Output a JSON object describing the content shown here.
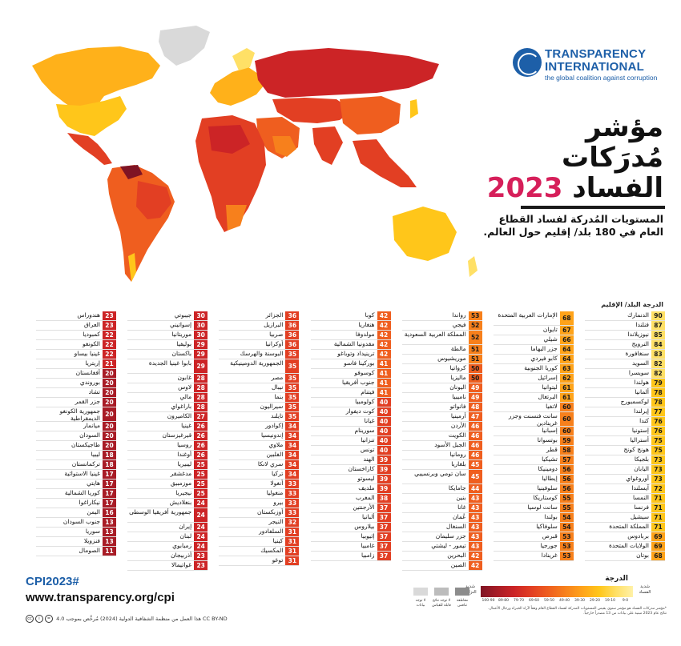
{
  "brand": {
    "name_line1": "TRANSPARENCY",
    "name_line2": "INTERNATIONAL",
    "tagline": "the global coalition against corruption",
    "color": "#1d5fa8"
  },
  "title": {
    "line1": "مؤشر",
    "line2": "مُدرَكات",
    "line3_word": "الفساد",
    "year": "2023",
    "year_color": "#d61f5a"
  },
  "subtitle": "المستويات المُدركة لفساد القطاع العام في 180 بلد/ إقليم حول العالم.",
  "table": {
    "header_country": "البلد/ الإقليم",
    "header_score": "الدرجة",
    "columns": [
      [
        {
          "name": "الدنمارك",
          "score": 90
        },
        {
          "name": "فنلندا",
          "score": 87
        },
        {
          "name": "نيوزيلاندا",
          "score": 85
        },
        {
          "name": "النرويج",
          "score": 84
        },
        {
          "name": "سنغافورة",
          "score": 83
        },
        {
          "name": "السويد",
          "score": 82
        },
        {
          "name": "سويسرا",
          "score": 82
        },
        {
          "name": "هولندا",
          "score": 79
        },
        {
          "name": "ألمانيا",
          "score": 78
        },
        {
          "name": "لوكسمبورج",
          "score": 78
        },
        {
          "name": "إيرلندا",
          "score": 77
        },
        {
          "name": "كندا",
          "score": 76
        },
        {
          "name": "إستونيا",
          "score": 76
        },
        {
          "name": "أستراليا",
          "score": 75
        },
        {
          "name": "هونج كونج",
          "score": 75
        },
        {
          "name": "بلجيكا",
          "score": 73
        },
        {
          "name": "اليابان",
          "score": 73
        },
        {
          "name": "أوروغواي",
          "score": 73
        },
        {
          "name": "آيسلندا",
          "score": 72
        },
        {
          "name": "النمسا",
          "score": 71
        },
        {
          "name": "فرنسا",
          "score": 71
        },
        {
          "name": "سيشيل",
          "score": 71
        },
        {
          "name": "المملكة المتحدة",
          "score": 71
        },
        {
          "name": "بربادوس",
          "score": 69
        },
        {
          "name": "الولايات المتحدة",
          "score": 69
        },
        {
          "name": "بوتان",
          "score": 68
        }
      ],
      [
        {
          "name": "الإمارات العربية المتحدة",
          "score": 68
        },
        {
          "name": "تايوان",
          "score": 67
        },
        {
          "name": "شيلي",
          "score": 66
        },
        {
          "name": "جزر البهاما",
          "score": 64
        },
        {
          "name": "كابو فيردي",
          "score": 64
        },
        {
          "name": "كوريا الجنوبية",
          "score": 63
        },
        {
          "name": "إسرائيل",
          "score": 62
        },
        {
          "name": "ليتوانيا",
          "score": 61
        },
        {
          "name": "البرتغال",
          "score": 61
        },
        {
          "name": "لاتفيا",
          "score": 60
        },
        {
          "name": "سانت فنسنت وجزر غرينادين",
          "score": 60
        },
        {
          "name": "إسبانيا",
          "score": 60
        },
        {
          "name": "بوتسوانا",
          "score": 59
        },
        {
          "name": "قطر",
          "score": 58
        },
        {
          "name": "تشيكيا",
          "score": 57
        },
        {
          "name": "دومينيكا",
          "score": 56
        },
        {
          "name": "إيطاليا",
          "score": 56
        },
        {
          "name": "سلوفينيا",
          "score": 56
        },
        {
          "name": "كوستاريكا",
          "score": 55
        },
        {
          "name": "سانت لوسيا",
          "score": 55
        },
        {
          "name": "بولندا",
          "score": 54
        },
        {
          "name": "سلوفاكيا",
          "score": 54
        },
        {
          "name": "قبرص",
          "score": 53
        },
        {
          "name": "جورجيا",
          "score": 53
        },
        {
          "name": "غرينادا",
          "score": 53
        }
      ],
      [
        {
          "name": "رواندا",
          "score": 53
        },
        {
          "name": "فيجي",
          "score": 52
        },
        {
          "name": "المملكة العربية السعودية",
          "score": 52
        },
        {
          "name": "مالطة",
          "score": 51
        },
        {
          "name": "موريشيوس",
          "score": 51
        },
        {
          "name": "كرواتيا",
          "score": 50
        },
        {
          "name": "ماليزيا",
          "score": 50
        },
        {
          "name": "اليونان",
          "score": 49
        },
        {
          "name": "ناميبيا",
          "score": 49
        },
        {
          "name": "فانواتو",
          "score": 48
        },
        {
          "name": "أرمينيا",
          "score": 47
        },
        {
          "name": "الأردن",
          "score": 46
        },
        {
          "name": "الكويت",
          "score": 46
        },
        {
          "name": "الجبل الأسود",
          "score": 46
        },
        {
          "name": "رومانيا",
          "score": 46
        },
        {
          "name": "بلغاريا",
          "score": 45
        },
        {
          "name": "سان تومي وبرنسيبي",
          "score": 45
        },
        {
          "name": "جامايكا",
          "score": 44
        },
        {
          "name": "بنين",
          "score": 43
        },
        {
          "name": "غانا",
          "score": 43
        },
        {
          "name": "عُمان",
          "score": 43
        },
        {
          "name": "السنغال",
          "score": 43
        },
        {
          "name": "جزر سليمان",
          "score": 43
        },
        {
          "name": "تيمور - ليشتي",
          "score": 43
        },
        {
          "name": "البحرين",
          "score": 42
        },
        {
          "name": "الصين",
          "score": 42
        }
      ],
      [
        {
          "name": "كوبا",
          "score": 42
        },
        {
          "name": "هنغاريا",
          "score": 42
        },
        {
          "name": "مولدوفا",
          "score": 42
        },
        {
          "name": "مقدونيا الشمالية",
          "score": 42
        },
        {
          "name": "ترينيداد وتوباغو",
          "score": 42
        },
        {
          "name": "بوركينا فاسو",
          "score": 41
        },
        {
          "name": "كوسوفو",
          "score": 41
        },
        {
          "name": "جنوب أفريقيا",
          "score": 41
        },
        {
          "name": "فيتنام",
          "score": 41
        },
        {
          "name": "كولومبيا",
          "score": 40
        },
        {
          "name": "كوت ديفوار",
          "score": 40
        },
        {
          "name": "غيانا",
          "score": 40
        },
        {
          "name": "سورينام",
          "score": 40
        },
        {
          "name": "تنزانيا",
          "score": 40
        },
        {
          "name": "تونس",
          "score": 40
        },
        {
          "name": "الهند",
          "score": 39
        },
        {
          "name": "كازاخستان",
          "score": 39
        },
        {
          "name": "ليسوتو",
          "score": 39
        },
        {
          "name": "ملديف",
          "score": 39
        },
        {
          "name": "المغرب",
          "score": 38
        },
        {
          "name": "الأرجنتين",
          "score": 37
        },
        {
          "name": "ألبانيا",
          "score": 37
        },
        {
          "name": "بيلاروس",
          "score": 37
        },
        {
          "name": "إثيوبيا",
          "score": 37
        },
        {
          "name": "غامبيا",
          "score": 37
        },
        {
          "name": "زامبيا",
          "score": 37
        }
      ],
      [
        {
          "name": "الجزائر",
          "score": 36
        },
        {
          "name": "البرازيل",
          "score": 36
        },
        {
          "name": "صربيا",
          "score": 36
        },
        {
          "name": "أوكرانيا",
          "score": 36
        },
        {
          "name": "البوسنة والهرسك",
          "score": 35
        },
        {
          "name": "الجمهورية الدومينيكية",
          "score": 35
        },
        {
          "name": "مصر",
          "score": 35
        },
        {
          "name": "نيبال",
          "score": 35
        },
        {
          "name": "بنما",
          "score": 35
        },
        {
          "name": "سيراليون",
          "score": 35
        },
        {
          "name": "تايلند",
          "score": 35
        },
        {
          "name": "إكوادور",
          "score": 34
        },
        {
          "name": "إندونيسيا",
          "score": 34
        },
        {
          "name": "ملاوي",
          "score": 34
        },
        {
          "name": "الفلبين",
          "score": 34
        },
        {
          "name": "سري لانكا",
          "score": 34
        },
        {
          "name": "تركيا",
          "score": 34
        },
        {
          "name": "أنغولا",
          "score": 33
        },
        {
          "name": "منغوليا",
          "score": 33
        },
        {
          "name": "بيرو",
          "score": 33
        },
        {
          "name": "أوزبكستان",
          "score": 33
        },
        {
          "name": "النيجر",
          "score": 32
        },
        {
          "name": "السلفادور",
          "score": 31
        },
        {
          "name": "كينيا",
          "score": 31
        },
        {
          "name": "المكسيك",
          "score": 31
        },
        {
          "name": "توغو",
          "score": 31
        }
      ],
      [
        {
          "name": "جيبوتي",
          "score": 30
        },
        {
          "name": "إسواتيني",
          "score": 30
        },
        {
          "name": "موريتانيا",
          "score": 30
        },
        {
          "name": "بوليفيا",
          "score": 29
        },
        {
          "name": "باكستان",
          "score": 29
        },
        {
          "name": "بابوا غينيا الجديدة",
          "score": 29
        },
        {
          "name": "غابون",
          "score": 28
        },
        {
          "name": "لاوس",
          "score": 28
        },
        {
          "name": "مالي",
          "score": 28
        },
        {
          "name": "باراغواي",
          "score": 28
        },
        {
          "name": "الكاميرون",
          "score": 27
        },
        {
          "name": "غينيا",
          "score": 26
        },
        {
          "name": "قيرغيزستان",
          "score": 26
        },
        {
          "name": "روسيا",
          "score": 26
        },
        {
          "name": "أوغندا",
          "score": 26
        },
        {
          "name": "ليبيريا",
          "score": 25
        },
        {
          "name": "مدغشقر",
          "score": 25
        },
        {
          "name": "موزمبيق",
          "score": 25
        },
        {
          "name": "نيجيريا",
          "score": 25
        },
        {
          "name": "بنغلاديش",
          "score": 24
        },
        {
          "name": "جمهورية أفريقيا الوسطى",
          "score": 24
        },
        {
          "name": "إيران",
          "score": 24
        },
        {
          "name": "لبنان",
          "score": 24
        },
        {
          "name": "زمبابوي",
          "score": 24
        },
        {
          "name": "أذربيجان",
          "score": 23
        },
        {
          "name": "غواتيمالا",
          "score": 23
        }
      ],
      [
        {
          "name": "هندوراس",
          "score": 23
        },
        {
          "name": "العراق",
          "score": 23
        },
        {
          "name": "كمبوديا",
          "score": 22
        },
        {
          "name": "الكونغو",
          "score": 22
        },
        {
          "name": "غينيا بيساو",
          "score": 22
        },
        {
          "name": "إريتريا",
          "score": 21
        },
        {
          "name": "أفغانستان",
          "score": 20
        },
        {
          "name": "بوروندي",
          "score": 20
        },
        {
          "name": "تشاد",
          "score": 20
        },
        {
          "name": "جزر القمر",
          "score": 20
        },
        {
          "name": "جمهورية الكونغو الديمقراطية",
          "score": 20
        },
        {
          "name": "ميانمار",
          "score": 20
        },
        {
          "name": "السودان",
          "score": 20
        },
        {
          "name": "طاجيكستان",
          "score": 20
        },
        {
          "name": "ليبيا",
          "score": 18
        },
        {
          "name": "تركمانستان",
          "score": 18
        },
        {
          "name": "غينيا الاستوائية",
          "score": 17
        },
        {
          "name": "هايتي",
          "score": 17
        },
        {
          "name": "كوريا الشمالية",
          "score": 17
        },
        {
          "name": "نيكاراغوا",
          "score": 17
        },
        {
          "name": "اليمن",
          "score": 16
        },
        {
          "name": "جنوب السودان",
          "score": 13
        },
        {
          "name": "سوريا",
          "score": 13
        },
        {
          "name": "فنزويلا",
          "score": 13
        },
        {
          "name": "الصومال",
          "score": 11
        }
      ]
    ]
  },
  "legend": {
    "title": "الدرجة",
    "high_label": "شديد الفساد",
    "low_label": "شديد النزاهة",
    "bands": [
      "100-90",
      "89-80",
      "79-70",
      "69-60",
      "59-50",
      "49-40",
      "39-30",
      "29-20",
      "19-10",
      "9-0"
    ],
    "band_colors": [
      "#fff1a8",
      "#ffe066",
      "#ffc61a",
      "#ffa31a",
      "#f7801c",
      "#ef5e1f",
      "#e23f23",
      "#cc2426",
      "#a81c26",
      "#7f1424"
    ],
    "no_data": [
      {
        "label": "لا توجد بيانات",
        "color": "#d9d9d9"
      },
      {
        "label": "لا توجد نتائج قابلة للقياس",
        "color": "#bcbcbc"
      },
      {
        "label": "مقاطعة تنافس",
        "color": "#8c8c8c"
      }
    ]
  },
  "footer": {
    "hashtag": "CPI2023#",
    "website": "www.transparency.org/cpi",
    "license": "هذا العمل من منظمة الشفافية الدولية (2024) مُرخَّص بموجب 4.0 CC BY-ND",
    "note": "*مؤشر مدركات الفساد هو مؤشر سنوي يقيس المستويات المدركة لفساد القطاع العام وفقاً لآراء الخبراء ورجال الأعمال. نتائج عام 2023 مبنية على بيانات من 13 مصدراً خارجياً."
  }
}
